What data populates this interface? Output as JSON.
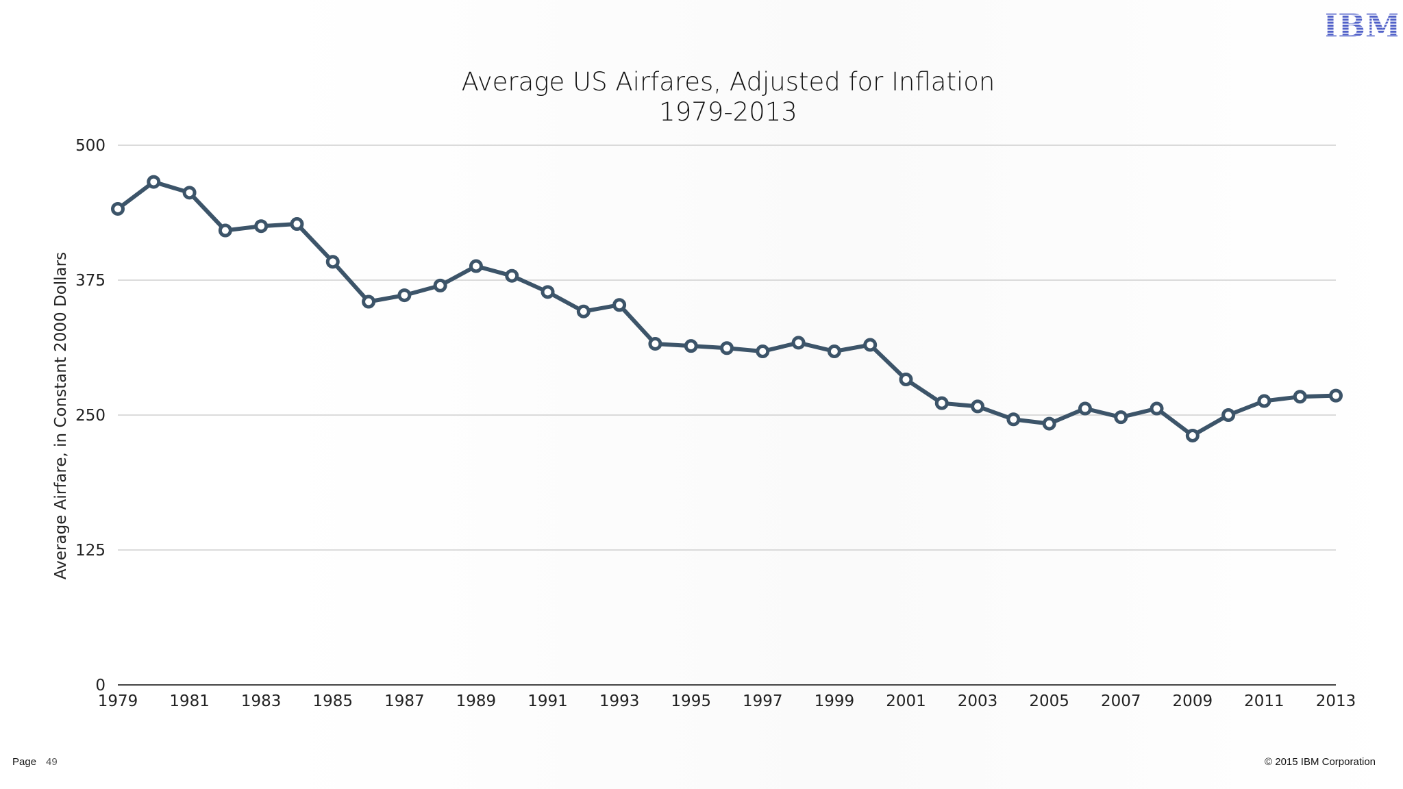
{
  "logo_text": "IBM",
  "footer": {
    "page_label": "Page",
    "page_number": "49",
    "copyright": "© 2015 IBM Corporation"
  },
  "colors": {
    "series": "#3c5469",
    "grid": "#cfcfcf",
    "logo": "#5060c8"
  },
  "chart_data": {
    "type": "line",
    "title": "Average US Airfares, Adjusted for Inflation",
    "subtitle": "1979-2013",
    "xlabel": "",
    "ylabel": "Average Airfare, in Constant 2000 Dollars",
    "ylim": [
      0,
      500
    ],
    "yticks": [
      0,
      125,
      250,
      375,
      500
    ],
    "xlim": [
      1979,
      2013
    ],
    "xticks": [
      1979,
      1981,
      1983,
      1985,
      1987,
      1989,
      1991,
      1993,
      1995,
      1997,
      1999,
      2001,
      2003,
      2005,
      2007,
      2009,
      2011,
      2013
    ],
    "grid": true,
    "x": [
      1979,
      1980,
      1981,
      1982,
      1983,
      1984,
      1985,
      1986,
      1987,
      1988,
      1989,
      1990,
      1991,
      1992,
      1993,
      1994,
      1995,
      1996,
      1997,
      1998,
      1999,
      2000,
      2001,
      2002,
      2003,
      2004,
      2005,
      2006,
      2007,
      2008,
      2009,
      2010,
      2011,
      2012,
      2013
    ],
    "series": [
      {
        "values": [
          441,
          466,
          456,
          421,
          425,
          427,
          392,
          355,
          361,
          370,
          388,
          379,
          364,
          346,
          352,
          316,
          314,
          312,
          309,
          317,
          309,
          315,
          283,
          261,
          258,
          246,
          242,
          256,
          248,
          256,
          231,
          250,
          263,
          267,
          268
        ]
      }
    ]
  }
}
